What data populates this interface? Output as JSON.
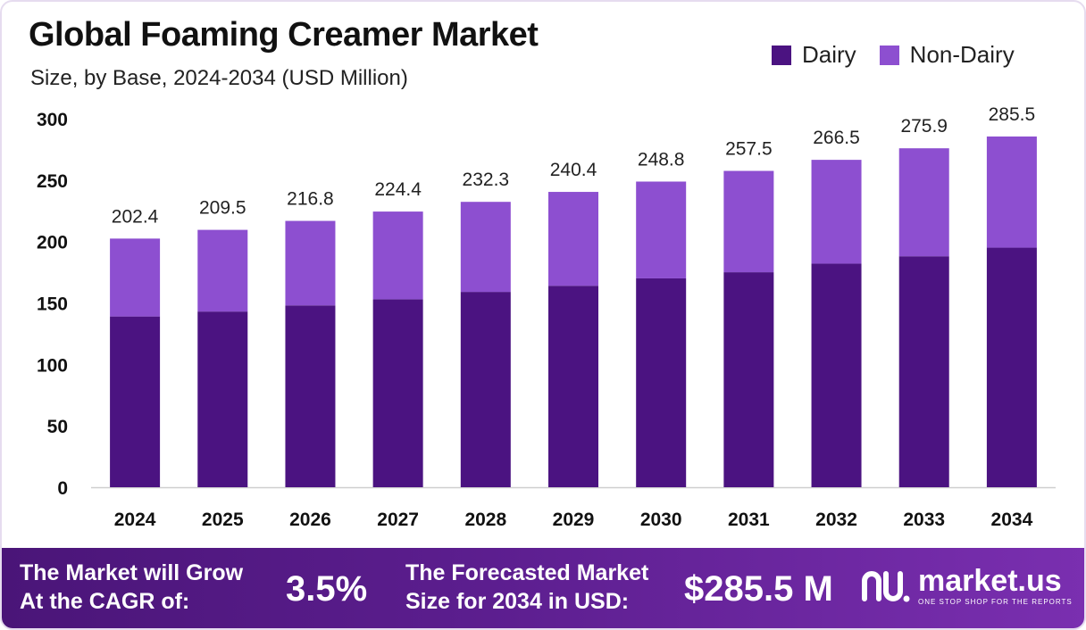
{
  "header": {
    "title": "Global Foaming Creamer Market",
    "subtitle": "Size, by Base, 2024-2034 (USD Million)"
  },
  "legend": [
    {
      "label": "Dairy",
      "color": "#4b1381"
    },
    {
      "label": "Non-Dairy",
      "color": "#8d4fd0"
    }
  ],
  "chart_data": {
    "type": "bar",
    "stacked": true,
    "categories": [
      "2024",
      "2025",
      "2026",
      "2027",
      "2028",
      "2029",
      "2030",
      "2031",
      "2032",
      "2033",
      "2034"
    ],
    "series": [
      {
        "name": "Dairy",
        "color": "#4b1381",
        "values": [
          139,
          143,
          148,
          153,
          159,
          164,
          170,
          175,
          182,
          188,
          195
        ]
      },
      {
        "name": "Non-Dairy",
        "color": "#8d4fd0",
        "values": [
          63.4,
          66.5,
          68.8,
          71.4,
          73.3,
          76.4,
          78.8,
          82.5,
          84.5,
          87.9,
          90.5
        ]
      }
    ],
    "totals": [
      "202.4",
      "209.5",
      "216.8",
      "224.4",
      "232.3",
      "240.4",
      "248.8",
      "257.5",
      "266.5",
      "275.9",
      "285.5"
    ],
    "yticks": [
      "0",
      "50",
      "100",
      "150",
      "200",
      "250",
      "300"
    ],
    "ylim": [
      0,
      300
    ],
    "xlabel": "",
    "ylabel": "",
    "grid": false,
    "legend_position": "top-right"
  },
  "footer": {
    "cagr_label_line1": "The Market will Grow",
    "cagr_label_line2": "At the CAGR of:",
    "cagr_value": "3.5%",
    "forecast_label_line1": "The Forecasted Market",
    "forecast_label_line2": "Size for 2034 in USD:",
    "forecast_value": "$285.5 M",
    "logo_text": "market.us",
    "logo_tagline": "ONE STOP SHOP FOR THE REPORTS",
    "logo_icon": "market-us-logo-icon"
  }
}
